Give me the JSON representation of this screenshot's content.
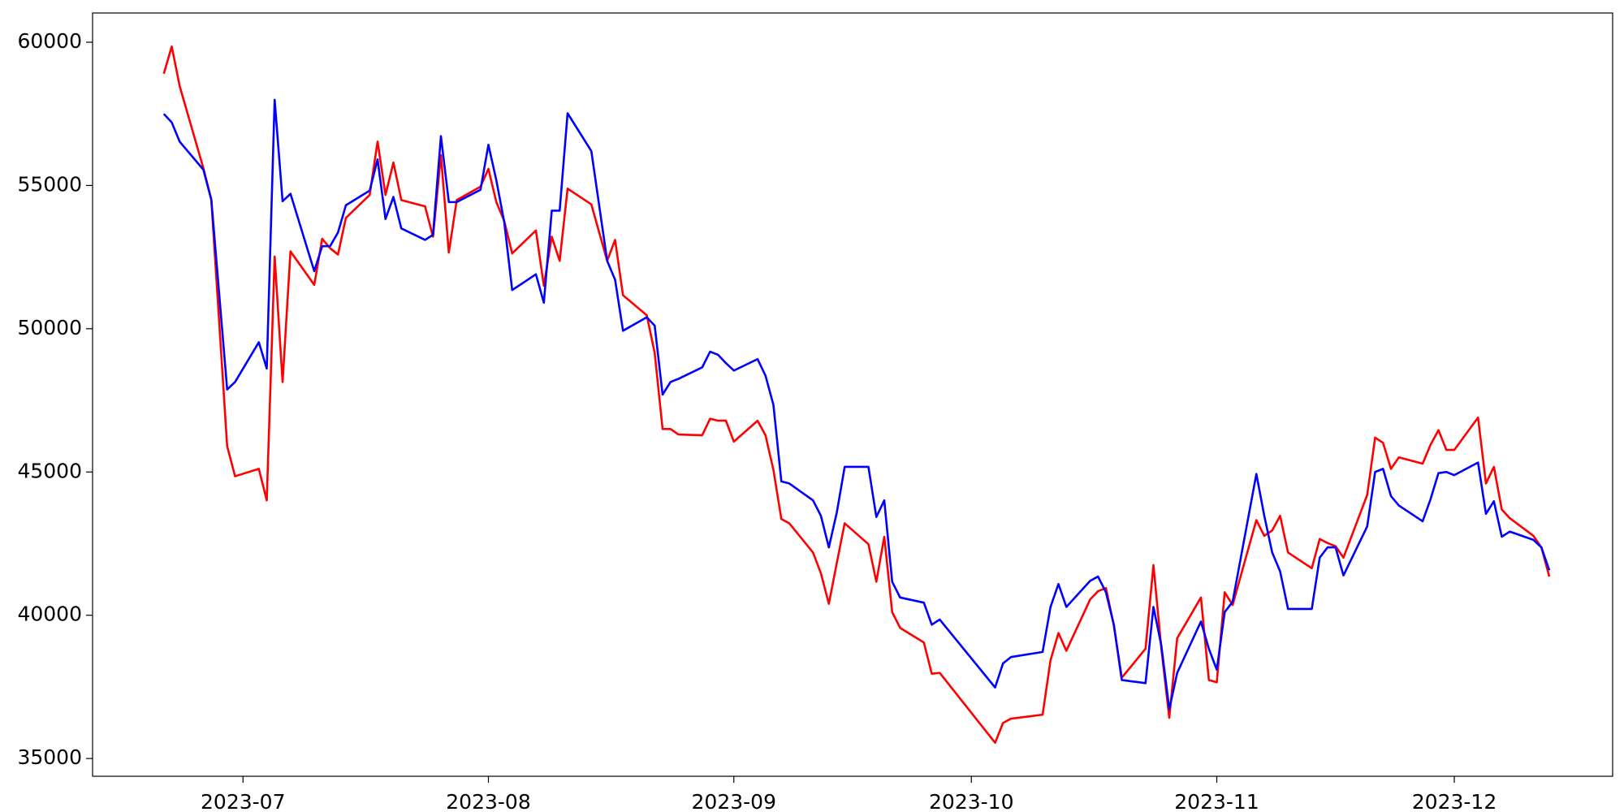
{
  "chart_data": {
    "type": "line",
    "x": [
      "2023-06-21",
      "2023-06-22",
      "2023-06-23",
      "2023-06-26",
      "2023-06-27",
      "2023-06-29",
      "2023-06-30",
      "2023-07-03",
      "2023-07-04",
      "2023-07-05",
      "2023-07-06",
      "2023-07-07",
      "2023-07-10",
      "2023-07-11",
      "2023-07-12",
      "2023-07-13",
      "2023-07-14",
      "2023-07-17",
      "2023-07-18",
      "2023-07-19",
      "2023-07-20",
      "2023-07-21",
      "2023-07-24",
      "2023-07-25",
      "2023-07-26",
      "2023-07-27",
      "2023-07-28",
      "2023-07-31",
      "2023-08-01",
      "2023-08-02",
      "2023-08-03",
      "2023-08-04",
      "2023-08-07",
      "2023-08-08",
      "2023-08-09",
      "2023-08-10",
      "2023-08-11",
      "2023-08-14",
      "2023-08-16",
      "2023-08-17",
      "2023-08-18",
      "2023-08-21",
      "2023-08-22",
      "2023-08-23",
      "2023-08-24",
      "2023-08-25",
      "2023-08-28",
      "2023-08-29",
      "2023-08-30",
      "2023-08-31",
      "2023-09-01",
      "2023-09-04",
      "2023-09-05",
      "2023-09-06",
      "2023-09-07",
      "2023-09-08",
      "2023-09-11",
      "2023-09-12",
      "2023-09-13",
      "2023-09-14",
      "2023-09-15",
      "2023-09-18",
      "2023-09-19",
      "2023-09-20",
      "2023-09-21",
      "2023-09-22",
      "2023-09-25",
      "2023-09-26",
      "2023-09-27",
      "2023-10-04",
      "2023-10-05",
      "2023-10-06",
      "2023-10-10",
      "2023-10-11",
      "2023-10-12",
      "2023-10-13",
      "2023-10-16",
      "2023-10-17",
      "2023-10-18",
      "2023-10-19",
      "2023-10-20",
      "2023-10-23",
      "2023-10-24",
      "2023-10-25",
      "2023-10-26",
      "2023-10-27",
      "2023-10-30",
      "2023-10-31",
      "2023-11-01",
      "2023-11-02",
      "2023-11-03",
      "2023-11-06",
      "2023-11-07",
      "2023-11-08",
      "2023-11-09",
      "2023-11-10",
      "2023-11-13",
      "2023-11-14",
      "2023-11-15",
      "2023-11-16",
      "2023-11-17",
      "2023-11-20",
      "2023-11-21",
      "2023-11-22",
      "2023-11-23",
      "2023-11-24",
      "2023-11-27",
      "2023-11-28",
      "2023-11-29",
      "2023-11-30",
      "2023-12-01",
      "2023-12-04",
      "2023-12-05",
      "2023-12-06",
      "2023-12-07",
      "2023-12-08",
      "2023-12-11",
      "2023-12-12",
      "2023-12-13"
    ],
    "series": [
      {
        "color": "#ff0000",
        "values": [
          58900,
          59850,
          58470,
          55600,
          54500,
          45900,
          44850,
          45110,
          44010,
          52520,
          48140,
          52700,
          51530,
          53140,
          52810,
          52590,
          53870,
          54670,
          56530,
          54670,
          55800,
          54490,
          54270,
          53210,
          56060,
          52660,
          54490,
          54960,
          55580,
          54420,
          53760,
          52630,
          53430,
          51500,
          53210,
          52370,
          54890,
          54340,
          52370,
          53100,
          51170,
          50470,
          49160,
          46500,
          46500,
          46310,
          46280,
          46860,
          46790,
          46790,
          46060,
          46790,
          46280,
          45070,
          43360,
          43210,
          42190,
          41460,
          40400,
          41820,
          43210,
          42480,
          41170,
          42740,
          40110,
          39560,
          39050,
          37960,
          37990,
          35550,
          36240,
          36390,
          36530,
          38430,
          39380,
          38760,
          40550,
          40840,
          40950,
          39640,
          37820,
          38830,
          41750,
          38830,
          36420,
          39200,
          40620,
          37740,
          37660,
          40800,
          40360,
          43320,
          42770,
          42960,
          43470,
          42190,
          41640,
          42660,
          42520,
          42410,
          42010,
          44200,
          46200,
          46020,
          45110,
          45510,
          45290,
          45950,
          46460,
          45770,
          45770,
          46900,
          44600,
          45180,
          43690,
          43390,
          42770,
          42370,
          41350
        ]
      },
      {
        "color": "#0000ff",
        "values": [
          57500,
          57200,
          56530,
          55550,
          54500,
          47880,
          48140,
          49530,
          48610,
          57990,
          54450,
          54710,
          52010,
          52880,
          52880,
          53360,
          54310,
          54820,
          55910,
          53830,
          54600,
          53500,
          53100,
          53280,
          56720,
          54420,
          54420,
          54850,
          56420,
          55180,
          53720,
          51350,
          51900,
          50910,
          54120,
          54120,
          57520,
          56200,
          52370,
          51710,
          49930,
          50400,
          50110,
          47700,
          48140,
          48250,
          48650,
          49200,
          49090,
          48800,
          48540,
          48940,
          48360,
          47340,
          44670,
          44600,
          44010,
          43470,
          42370,
          43580,
          45180,
          45180,
          43430,
          44010,
          41170,
          40620,
          40440,
          39670,
          39850,
          37480,
          38320,
          38540,
          38720,
          40290,
          41090,
          40290,
          41200,
          41350,
          40800,
          39670,
          37740,
          37630,
          40290,
          38940,
          36720,
          37990,
          39780,
          38830,
          38100,
          40110,
          40470,
          44930,
          43470,
          42190,
          41530,
          40220,
          40220,
          42010,
          42370,
          42370,
          41390,
          43100,
          45000,
          45110,
          44160,
          43830,
          43280,
          44050,
          44960,
          45000,
          44890,
          45330,
          43540,
          43980,
          42740,
          42920,
          42630,
          42370,
          41570
        ]
      }
    ],
    "xlim": [
      "2023-06-12",
      "2023-12-21"
    ],
    "xticks": [
      {
        "value": "2023-07-01",
        "label": "2023-07"
      },
      {
        "value": "2023-08-01",
        "label": "2023-08"
      },
      {
        "value": "2023-09-01",
        "label": "2023-09"
      },
      {
        "value": "2023-10-01",
        "label": "2023-10"
      },
      {
        "value": "2023-11-01",
        "label": "2023-11"
      },
      {
        "value": "2023-12-01",
        "label": "2023-12"
      }
    ],
    "ylim": [
      34380,
      61020
    ],
    "yticks": [
      35000,
      40000,
      45000,
      50000,
      55000,
      60000
    ],
    "grid": false
  }
}
